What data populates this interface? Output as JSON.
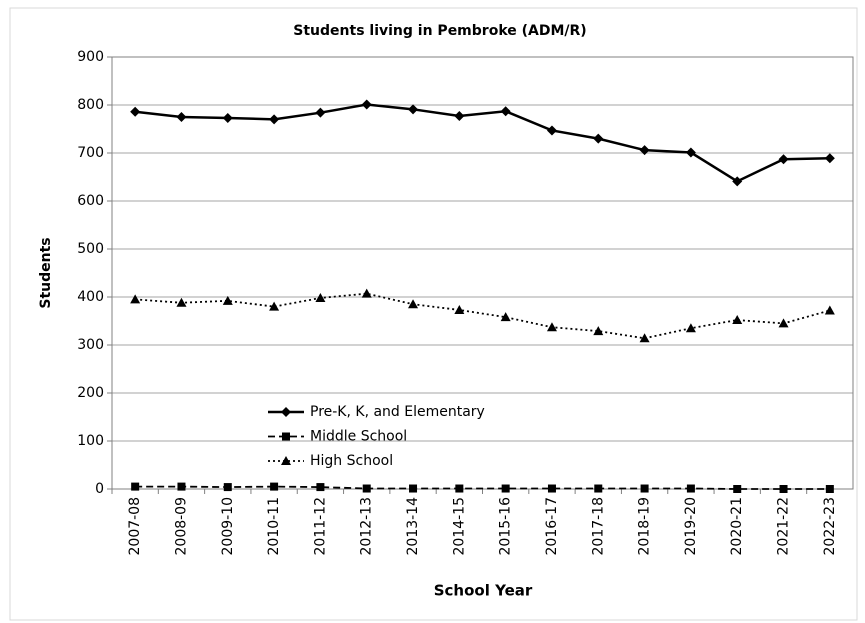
{
  "chart_data": {
    "type": "line",
    "title": "Students living in Pembroke (ADM/R)",
    "x_label": "School Year",
    "y_label": "Students",
    "categories": [
      "2007-08",
      "2008-09",
      "2009-10",
      "2010-11",
      "2011-12",
      "2012-13",
      "2013-14",
      "2014-15",
      "2015-16",
      "2016-17",
      "2017-18",
      "2018-19",
      "2019-20",
      "2020-21",
      "2021-22",
      "2022-23"
    ],
    "series": [
      {
        "name": "Pre-K, K, and Elementary",
        "color": "#000000",
        "line_style": "solid",
        "marker": "diamond",
        "values": [
          786,
          775,
          773,
          770,
          784,
          801,
          791,
          777,
          787,
          747,
          730,
          706,
          701,
          641,
          687,
          689
        ]
      },
      {
        "name": "Middle School",
        "color": "#000000",
        "line_style": "dashed",
        "marker": "square",
        "values": [
          5,
          5,
          4,
          5,
          4,
          1,
          1,
          1,
          1,
          1,
          1,
          1,
          1,
          0,
          0,
          0
        ]
      },
      {
        "name": "High School",
        "color": "#000000",
        "line_style": "dotted",
        "marker": "triangle",
        "values": [
          395,
          388,
          392,
          380,
          398,
          407,
          385,
          373,
          358,
          337,
          329,
          314,
          335,
          352,
          345,
          372
        ]
      }
    ],
    "ylim": [
      0,
      900
    ],
    "yticks": [
      0,
      100,
      200,
      300,
      400,
      500,
      600,
      700,
      800,
      900
    ],
    "grid": true,
    "legend": "lower-left"
  }
}
